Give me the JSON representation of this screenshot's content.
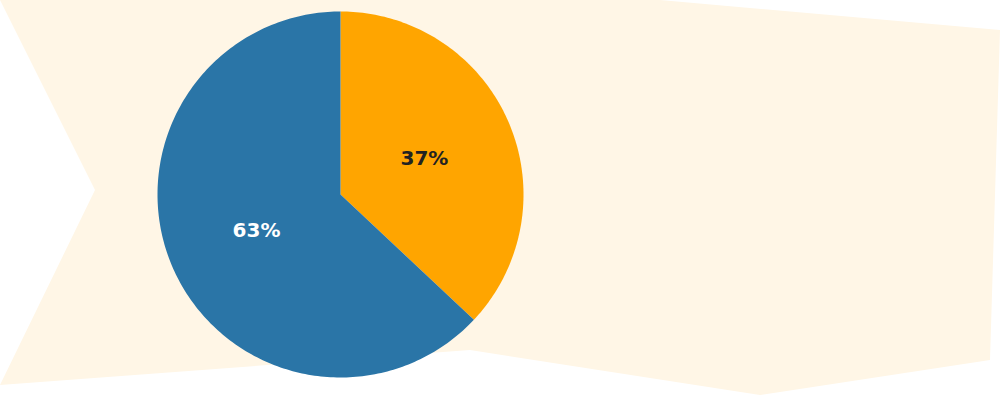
{
  "chart_data": {
    "type": "pie",
    "values": [
      37,
      63
    ],
    "value_labels": [
      "37%",
      "63%"
    ],
    "colors": [
      "#ffa500",
      "#2a75a7"
    ],
    "data_labels": true
  }
}
